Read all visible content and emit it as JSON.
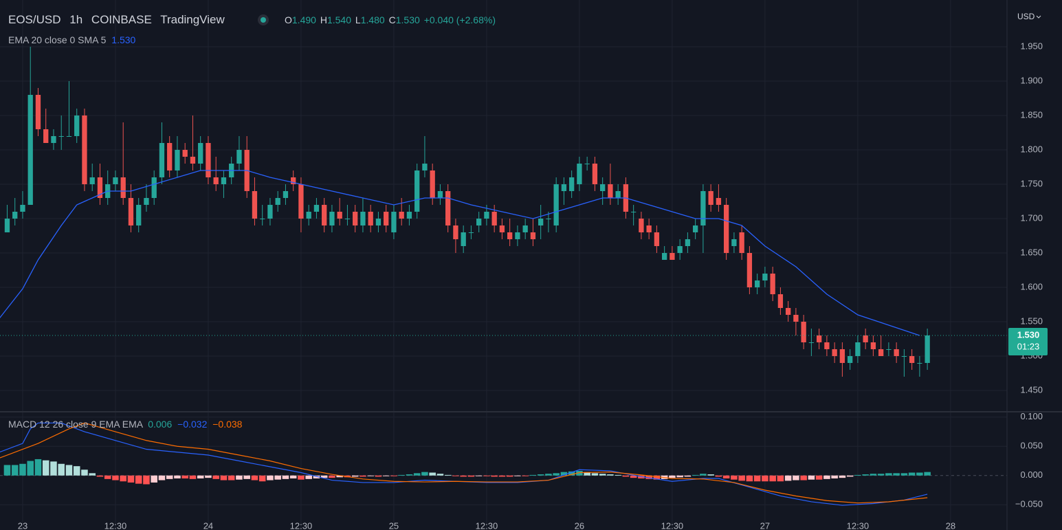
{
  "header": {
    "symbol": "EOS/USD",
    "interval": "1h",
    "exchange": "COINBASE",
    "source": "TradingView",
    "open_label": "O",
    "open": "1.490",
    "high_label": "H",
    "high": "1.540",
    "low_label": "L",
    "low": "1.480",
    "close_label": "C",
    "close": "1.530",
    "change": "+0.040 (+2.68%)",
    "currency": "USD"
  },
  "chart_data": [
    {
      "type": "candlestick",
      "up_color": "#26a69a",
      "down_color": "#ef5350",
      "xlim": [
        -2.93,
        127.3
      ],
      "ylim": [
        1.42,
        2.013
      ],
      "xticks": [
        {
          "value": 0,
          "label": "23"
        },
        {
          "value": 12,
          "label": "12:30"
        },
        {
          "value": 24,
          "label": "24"
        },
        {
          "value": 36,
          "label": "12:30"
        },
        {
          "value": 48,
          "label": "25"
        },
        {
          "value": 60,
          "label": "12:30"
        },
        {
          "value": 72,
          "label": "26"
        },
        {
          "value": 84,
          "label": "12:30"
        },
        {
          "value": 96,
          "label": "27"
        },
        {
          "value": 108,
          "label": "12:30"
        },
        {
          "value": 120,
          "label": "28"
        }
      ],
      "yticks": [
        {
          "value": 1.45,
          "label": "1.450"
        },
        {
          "value": 1.5,
          "label": "1.500"
        },
        {
          "value": 1.55,
          "label": "1.550"
        },
        {
          "value": 1.6,
          "label": "1.600"
        },
        {
          "value": 1.65,
          "label": "1.650"
        },
        {
          "value": 1.7,
          "label": "1.700"
        },
        {
          "value": 1.75,
          "label": "1.750"
        },
        {
          "value": 1.8,
          "label": "1.800"
        },
        {
          "value": 1.85,
          "label": "1.850"
        },
        {
          "value": 1.9,
          "label": "1.900"
        },
        {
          "value": 1.95,
          "label": "1.950"
        }
      ],
      "grid": true,
      "x": [
        -2,
        -1,
        0,
        1,
        2,
        3,
        4,
        5,
        6,
        7,
        8,
        9,
        10,
        11,
        12,
        13,
        14,
        15,
        16,
        17,
        18,
        19,
        20,
        21,
        22,
        23,
        24,
        25,
        26,
        27,
        28,
        29,
        30,
        31,
        32,
        33,
        34,
        35,
        36,
        37,
        38,
        39,
        40,
        41,
        42,
        43,
        44,
        45,
        46,
        47,
        48,
        49,
        50,
        51,
        52,
        53,
        54,
        55,
        56,
        57,
        58,
        59,
        60,
        61,
        62,
        63,
        64,
        65,
        66,
        67,
        68,
        69,
        70,
        71,
        72,
        73,
        74,
        75,
        76,
        77,
        78,
        79,
        80,
        81,
        82,
        83,
        84,
        85,
        86,
        87,
        88,
        89,
        90,
        91,
        92,
        93,
        94,
        95,
        96,
        97,
        98,
        99,
        100,
        101,
        102,
        103,
        104,
        105,
        106,
        107,
        108,
        109,
        110,
        111,
        112,
        113,
        114,
        115,
        116,
        117
      ],
      "open": [
        1.68,
        1.7,
        1.71,
        1.72,
        1.88,
        1.83,
        1.81,
        1.82,
        1.82,
        1.82,
        1.85,
        1.75,
        1.76,
        1.73,
        1.75,
        1.76,
        1.73,
        1.69,
        1.72,
        1.73,
        1.76,
        1.81,
        1.77,
        1.8,
        1.79,
        1.78,
        1.81,
        1.76,
        1.75,
        1.76,
        1.78,
        1.8,
        1.74,
        1.7,
        1.7,
        1.72,
        1.73,
        1.76,
        1.75,
        1.7,
        1.71,
        1.72,
        1.69,
        1.71,
        1.7,
        1.71,
        1.69,
        1.71,
        1.69,
        1.71,
        1.68,
        1.71,
        1.7,
        1.71,
        1.77,
        1.77,
        1.73,
        1.74,
        1.69,
        1.66,
        1.68,
        1.69,
        1.7,
        1.71,
        1.69,
        1.68,
        1.67,
        1.68,
        1.68,
        1.69,
        1.7,
        1.69,
        1.74,
        1.74,
        1.75,
        1.78,
        1.78,
        1.74,
        1.75,
        1.73,
        1.75,
        1.71,
        1.7,
        1.69,
        1.68,
        1.64,
        1.65,
        1.65,
        1.66,
        1.68,
        1.69,
        1.74,
        1.73,
        1.72,
        1.66,
        1.68,
        1.65,
        1.6,
        1.61,
        1.62,
        1.59,
        1.57,
        1.56,
        1.55,
        1.52,
        1.53,
        1.52,
        1.51,
        1.51,
        1.49,
        1.5,
        1.53,
        1.52,
        1.51,
        1.51,
        1.51,
        1.5,
        1.5,
        1.49,
        1.49
      ],
      "high": [
        1.72,
        1.73,
        1.74,
        1.95,
        1.89,
        1.86,
        1.83,
        1.85,
        1.9,
        1.86,
        1.86,
        1.78,
        1.78,
        1.77,
        1.77,
        1.84,
        1.75,
        1.73,
        1.75,
        1.77,
        1.84,
        1.82,
        1.82,
        1.81,
        1.85,
        1.82,
        1.82,
        1.79,
        1.77,
        1.79,
        1.82,
        1.82,
        1.76,
        1.72,
        1.73,
        1.74,
        1.75,
        1.77,
        1.76,
        1.72,
        1.73,
        1.73,
        1.72,
        1.73,
        1.72,
        1.72,
        1.73,
        1.72,
        1.71,
        1.72,
        1.72,
        1.73,
        1.72,
        1.78,
        1.82,
        1.78,
        1.75,
        1.75,
        1.7,
        1.69,
        1.69,
        1.71,
        1.72,
        1.72,
        1.7,
        1.7,
        1.69,
        1.7,
        1.7,
        1.72,
        1.71,
        1.76,
        1.76,
        1.77,
        1.79,
        1.79,
        1.79,
        1.76,
        1.78,
        1.75,
        1.76,
        1.72,
        1.71,
        1.7,
        1.69,
        1.66,
        1.66,
        1.67,
        1.68,
        1.7,
        1.75,
        1.75,
        1.75,
        1.73,
        1.68,
        1.69,
        1.66,
        1.62,
        1.63,
        1.63,
        1.6,
        1.58,
        1.57,
        1.56,
        1.54,
        1.54,
        1.53,
        1.52,
        1.52,
        1.51,
        1.53,
        1.54,
        1.53,
        1.53,
        1.52,
        1.52,
        1.51,
        1.51,
        1.5,
        1.54
      ],
      "low": [
        1.68,
        1.69,
        1.7,
        1.72,
        1.82,
        1.81,
        1.8,
        1.8,
        1.82,
        1.81,
        1.74,
        1.74,
        1.72,
        1.72,
        1.74,
        1.72,
        1.68,
        1.68,
        1.71,
        1.72,
        1.75,
        1.76,
        1.76,
        1.78,
        1.77,
        1.77,
        1.75,
        1.74,
        1.73,
        1.75,
        1.77,
        1.73,
        1.69,
        1.69,
        1.69,
        1.71,
        1.72,
        1.74,
        1.68,
        1.69,
        1.7,
        1.68,
        1.68,
        1.69,
        1.69,
        1.68,
        1.68,
        1.68,
        1.68,
        1.68,
        1.67,
        1.69,
        1.69,
        1.7,
        1.76,
        1.72,
        1.72,
        1.68,
        1.65,
        1.65,
        1.67,
        1.68,
        1.69,
        1.68,
        1.67,
        1.66,
        1.66,
        1.67,
        1.66,
        1.67,
        1.68,
        1.68,
        1.72,
        1.73,
        1.74,
        1.77,
        1.74,
        1.72,
        1.72,
        1.72,
        1.7,
        1.69,
        1.67,
        1.67,
        1.65,
        1.64,
        1.64,
        1.64,
        1.65,
        1.67,
        1.65,
        1.71,
        1.71,
        1.64,
        1.65,
        1.64,
        1.59,
        1.59,
        1.6,
        1.58,
        1.56,
        1.55,
        1.53,
        1.51,
        1.5,
        1.51,
        1.5,
        1.49,
        1.47,
        1.48,
        1.49,
        1.51,
        1.5,
        1.5,
        1.5,
        1.49,
        1.47,
        1.48,
        1.47,
        1.48
      ],
      "close": [
        1.7,
        1.71,
        1.72,
        1.88,
        1.83,
        1.81,
        1.82,
        1.82,
        1.82,
        1.85,
        1.75,
        1.76,
        1.73,
        1.75,
        1.76,
        1.73,
        1.69,
        1.72,
        1.73,
        1.76,
        1.81,
        1.77,
        1.8,
        1.79,
        1.78,
        1.81,
        1.76,
        1.75,
        1.76,
        1.78,
        1.8,
        1.74,
        1.7,
        1.7,
        1.72,
        1.73,
        1.74,
        1.75,
        1.7,
        1.71,
        1.72,
        1.69,
        1.71,
        1.7,
        1.7,
        1.69,
        1.71,
        1.69,
        1.7,
        1.69,
        1.71,
        1.7,
        1.71,
        1.77,
        1.78,
        1.73,
        1.74,
        1.69,
        1.67,
        1.68,
        1.68,
        1.7,
        1.71,
        1.69,
        1.68,
        1.67,
        1.68,
        1.69,
        1.67,
        1.7,
        1.7,
        1.75,
        1.75,
        1.76,
        1.78,
        1.78,
        1.75,
        1.75,
        1.73,
        1.74,
        1.71,
        1.71,
        1.68,
        1.68,
        1.66,
        1.65,
        1.64,
        1.66,
        1.67,
        1.69,
        1.74,
        1.72,
        1.72,
        1.65,
        1.67,
        1.65,
        1.6,
        1.61,
        1.62,
        1.59,
        1.57,
        1.56,
        1.55,
        1.52,
        1.52,
        1.52,
        1.51,
        1.5,
        1.49,
        1.5,
        1.52,
        1.52,
        1.51,
        1.5,
        1.51,
        1.5,
        1.5,
        1.49,
        1.49,
        1.53
      ],
      "last_label": "1.530",
      "countdown": "01:23",
      "last_color": "#22ab94",
      "lines": [
        {
          "name": "EMA 20 close 0 SMA 5",
          "value_label": "1.530",
          "color": "#2962ff",
          "x": [
            -3,
            0,
            2,
            5,
            7,
            9,
            11,
            14,
            17,
            20,
            23,
            26,
            29,
            32,
            36,
            40,
            44,
            48,
            52,
            55,
            58,
            62,
            66,
            69,
            72,
            75,
            78,
            81,
            84,
            87,
            90,
            93,
            96,
            100,
            104,
            108,
            112,
            116
          ],
          "values": [
            1.555,
            1.598,
            1.64,
            1.69,
            1.72,
            1.73,
            1.74,
            1.74,
            1.75,
            1.76,
            1.77,
            1.77,
            1.77,
            1.76,
            1.75,
            1.74,
            1.73,
            1.72,
            1.73,
            1.73,
            1.72,
            1.71,
            1.7,
            1.71,
            1.72,
            1.73,
            1.73,
            1.72,
            1.71,
            1.7,
            1.7,
            1.69,
            1.66,
            1.63,
            1.59,
            1.56,
            1.545,
            1.53
          ]
        }
      ]
    },
    {
      "type": "macd",
      "title": "MACD 12 26 close 9 EMA EMA",
      "value_labels": [
        "0.006",
        "−0.032",
        "−0.038"
      ],
      "xlim": [
        -2.93,
        127.3
      ],
      "ylim": [
        -0.078,
        0.108
      ],
      "yticks": [
        {
          "value": -0.05,
          "label": "−0.050"
        },
        {
          "value": 0,
          "label": "0.000"
        },
        {
          "value": 0.05,
          "label": "0.050"
        },
        {
          "value": 0.1,
          "label": "0.100"
        }
      ],
      "histogram": {
        "colors": [
          "#26a69a",
          "#b2dfdb",
          "#ffcdd2",
          "#ff5252"
        ],
        "x": [
          -2,
          -1,
          0,
          1,
          2,
          3,
          4,
          5,
          6,
          7,
          8,
          9,
          10,
          11,
          12,
          13,
          14,
          15,
          16,
          17,
          18,
          19,
          20,
          21,
          22,
          23,
          24,
          25,
          26,
          27,
          28,
          29,
          30,
          31,
          32,
          33,
          34,
          35,
          36,
          37,
          38,
          39,
          40,
          41,
          42,
          43,
          44,
          45,
          46,
          47,
          48,
          49,
          50,
          51,
          52,
          53,
          54,
          55,
          56,
          57,
          58,
          59,
          60,
          61,
          62,
          63,
          64,
          65,
          66,
          67,
          68,
          69,
          70,
          71,
          72,
          73,
          74,
          75,
          76,
          77,
          78,
          79,
          80,
          81,
          82,
          83,
          84,
          85,
          86,
          87,
          88,
          89,
          90,
          91,
          92,
          93,
          94,
          95,
          96,
          97,
          98,
          99,
          100,
          101,
          102,
          103,
          104,
          105,
          106,
          107,
          108,
          109,
          110,
          111,
          112,
          113,
          114,
          115,
          116,
          117
        ],
        "values": [
          0.018,
          0.018,
          0.02,
          0.025,
          0.028,
          0.026,
          0.024,
          0.02,
          0.018,
          0.016,
          0.01,
          0.004,
          -0.002,
          -0.006,
          -0.008,
          -0.01,
          -0.012,
          -0.014,
          -0.015,
          -0.012,
          -0.008,
          -0.006,
          -0.005,
          -0.005,
          -0.006,
          -0.005,
          -0.004,
          -0.006,
          -0.008,
          -0.008,
          -0.007,
          -0.006,
          -0.008,
          -0.01,
          -0.008,
          -0.007,
          -0.006,
          -0.005,
          -0.007,
          -0.006,
          -0.005,
          -0.004,
          -0.004,
          -0.003,
          -0.003,
          -0.002,
          -0.002,
          -0.001,
          -0.002,
          -0.001,
          -0.001,
          0.001,
          0.002,
          0.004,
          0.006,
          0.005,
          0.003,
          0.001,
          -0.001,
          -0.002,
          -0.002,
          -0.001,
          -0.001,
          -0.002,
          -0.002,
          -0.002,
          -0.001,
          -0.001,
          0.001,
          0.002,
          0.003,
          0.004,
          0.006,
          0.007,
          0.008,
          0.006,
          0.004,
          0.003,
          0.002,
          0.001,
          -0.002,
          -0.004,
          -0.005,
          -0.006,
          -0.007,
          -0.006,
          -0.004,
          -0.003,
          -0.002,
          0.001,
          0.003,
          0.002,
          -0.002,
          -0.005,
          -0.007,
          -0.009,
          -0.01,
          -0.01,
          -0.01,
          -0.01,
          -0.01,
          -0.009,
          -0.008,
          -0.008,
          -0.007,
          -0.007,
          -0.006,
          -0.005,
          -0.004,
          -0.002,
          0.001,
          0.002,
          0.003,
          0.003,
          0.004,
          0.004,
          0.004,
          0.005,
          0.005,
          0.006
        ]
      },
      "lines": [
        {
          "color": "#2962ff",
          "x": [
            -3,
            0,
            1,
            2,
            5,
            8,
            12,
            16,
            20,
            24,
            28,
            32,
            36,
            40,
            44,
            48,
            52,
            56,
            60,
            64,
            68,
            72,
            76,
            80,
            84,
            88,
            90,
            94,
            98,
            102,
            106,
            110,
            114,
            117
          ],
          "values": [
            0.04,
            0.055,
            0.08,
            0.09,
            0.09,
            0.075,
            0.06,
            0.045,
            0.04,
            0.035,
            0.025,
            0.015,
            0.005,
            -0.008,
            -0.012,
            -0.012,
            -0.008,
            -0.01,
            -0.012,
            -0.012,
            -0.008,
            0.01,
            0.008,
            -0.002,
            -0.01,
            -0.005,
            -0.005,
            -0.02,
            -0.035,
            -0.045,
            -0.051,
            -0.048,
            -0.042,
            -0.032
          ]
        },
        {
          "color": "#ff6d00",
          "x": [
            -3,
            2,
            6,
            8,
            12,
            16,
            20,
            24,
            28,
            32,
            36,
            40,
            44,
            48,
            52,
            56,
            60,
            64,
            68,
            72,
            76,
            80,
            84,
            88,
            92,
            96,
            100,
            104,
            108,
            112,
            117
          ],
          "values": [
            0.03,
            0.055,
            0.08,
            0.09,
            0.075,
            0.06,
            0.05,
            0.045,
            0.035,
            0.025,
            0.012,
            0.002,
            -0.006,
            -0.01,
            -0.011,
            -0.01,
            -0.011,
            -0.011,
            -0.008,
            0.005,
            0.006,
            0.001,
            -0.005,
            -0.006,
            -0.012,
            -0.025,
            -0.035,
            -0.043,
            -0.047,
            -0.045,
            -0.038
          ]
        }
      ]
    }
  ]
}
